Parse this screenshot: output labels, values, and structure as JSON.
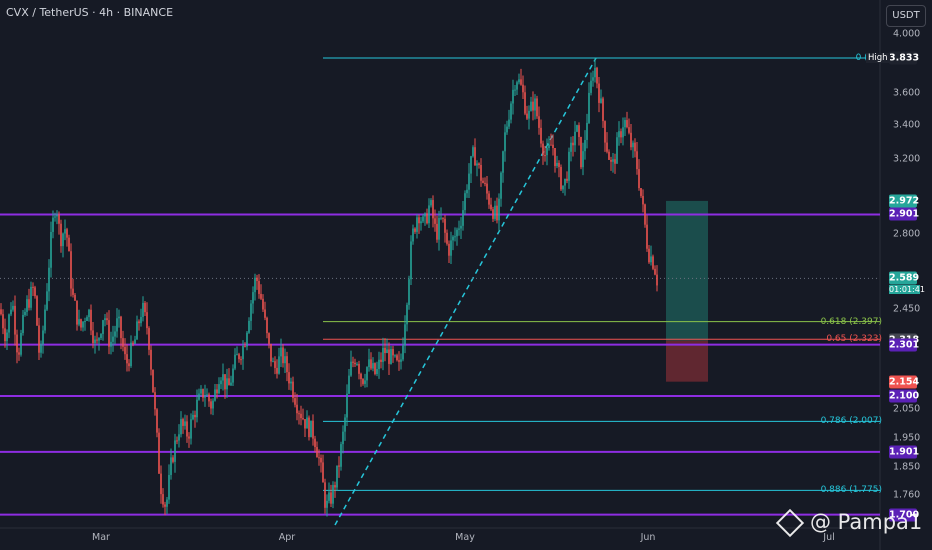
{
  "chart_title": "CVX / TetherUS · 4h · BINANCE",
  "currency_button": "USDT",
  "watermark": "@ Pampa1",
  "colors": {
    "background": "#161a25",
    "up": "#26a69a",
    "down": "#ef5350",
    "purple": "#8e2de2",
    "fib_cyan": "#26c6da",
    "fib_green": "#8bc34a",
    "fib_red": "#ef5350",
    "long_green": "#1e5f5a",
    "long_red": "#6d2a33"
  },
  "chart_data": {
    "type": "candlestick",
    "symbol": "CVX / TetherUS",
    "timeframe": "4h",
    "exchange": "BINANCE",
    "y_scale": "log",
    "ylim": [
      1.66,
      4.25
    ],
    "y_ticks": [
      "4.000",
      "3.600",
      "3.400",
      "3.200",
      "2.800",
      "2.450",
      "2.050",
      "1.950",
      "1.850",
      "1.760"
    ],
    "y_tick_values": [
      4.0,
      3.6,
      3.4,
      3.2,
      2.8,
      2.45,
      2.05,
      1.95,
      1.85,
      1.76
    ],
    "x_ticks": [
      "Mar",
      "Apr",
      "May",
      "Jun",
      "Jul"
    ],
    "price_path": [
      {
        "t": 0,
        "p": 2.45
      },
      {
        "t": 6,
        "p": 2.33
      },
      {
        "t": 12,
        "p": 2.5
      },
      {
        "t": 18,
        "p": 2.26
      },
      {
        "t": 26,
        "p": 2.46
      },
      {
        "t": 34,
        "p": 2.55
      },
      {
        "t": 40,
        "p": 2.22
      },
      {
        "t": 46,
        "p": 2.5
      },
      {
        "t": 52,
        "p": 2.82
      },
      {
        "t": 56,
        "p": 2.98
      },
      {
        "t": 60,
        "p": 2.78
      },
      {
        "t": 66,
        "p": 2.84
      },
      {
        "t": 72,
        "p": 2.52
      },
      {
        "t": 80,
        "p": 2.36
      },
      {
        "t": 88,
        "p": 2.46
      },
      {
        "t": 96,
        "p": 2.28
      },
      {
        "t": 104,
        "p": 2.44
      },
      {
        "t": 110,
        "p": 2.3
      },
      {
        "t": 118,
        "p": 2.4
      },
      {
        "t": 126,
        "p": 2.22
      },
      {
        "t": 134,
        "p": 2.3
      },
      {
        "t": 142,
        "p": 2.46
      },
      {
        "t": 148,
        "p": 2.36
      },
      {
        "t": 154,
        "p": 2.08
      },
      {
        "t": 160,
        "p": 1.8
      },
      {
        "t": 166,
        "p": 1.72
      },
      {
        "t": 172,
        "p": 1.88
      },
      {
        "t": 180,
        "p": 2.0
      },
      {
        "t": 188,
        "p": 1.96
      },
      {
        "t": 196,
        "p": 2.06
      },
      {
        "t": 204,
        "p": 2.12
      },
      {
        "t": 212,
        "p": 2.06
      },
      {
        "t": 220,
        "p": 2.2
      },
      {
        "t": 228,
        "p": 2.12
      },
      {
        "t": 236,
        "p": 2.24
      },
      {
        "t": 244,
        "p": 2.3
      },
      {
        "t": 250,
        "p": 2.46
      },
      {
        "t": 256,
        "p": 2.6
      },
      {
        "t": 262,
        "p": 2.48
      },
      {
        "t": 268,
        "p": 2.3
      },
      {
        "t": 274,
        "p": 2.2
      },
      {
        "t": 282,
        "p": 2.26
      },
      {
        "t": 290,
        "p": 2.16
      },
      {
        "t": 298,
        "p": 2.06
      },
      {
        "t": 306,
        "p": 2.0
      },
      {
        "t": 314,
        "p": 1.96
      },
      {
        "t": 320,
        "p": 1.86
      },
      {
        "t": 326,
        "p": 1.72
      },
      {
        "t": 332,
        "p": 1.76
      },
      {
        "t": 338,
        "p": 1.84
      },
      {
        "t": 344,
        "p": 1.98
      },
      {
        "t": 350,
        "p": 2.2
      },
      {
        "t": 356,
        "p": 2.26
      },
      {
        "t": 362,
        "p": 2.16
      },
      {
        "t": 368,
        "p": 2.22
      },
      {
        "t": 376,
        "p": 2.18
      },
      {
        "t": 384,
        "p": 2.28
      },
      {
        "t": 392,
        "p": 2.24
      },
      {
        "t": 400,
        "p": 2.2
      },
      {
        "t": 406,
        "p": 2.46
      },
      {
        "t": 412,
        "p": 2.78
      },
      {
        "t": 418,
        "p": 2.92
      },
      {
        "t": 424,
        "p": 2.84
      },
      {
        "t": 430,
        "p": 2.96
      },
      {
        "t": 436,
        "p": 2.8
      },
      {
        "t": 442,
        "p": 2.88
      },
      {
        "t": 448,
        "p": 2.72
      },
      {
        "t": 456,
        "p": 2.8
      },
      {
        "t": 462,
        "p": 2.9
      },
      {
        "t": 468,
        "p": 3.1
      },
      {
        "t": 474,
        "p": 3.24
      },
      {
        "t": 480,
        "p": 3.12
      },
      {
        "t": 486,
        "p": 3.02
      },
      {
        "t": 492,
        "p": 2.94
      },
      {
        "t": 498,
        "p": 2.86
      },
      {
        "t": 504,
        "p": 3.3
      },
      {
        "t": 510,
        "p": 3.52
      },
      {
        "t": 516,
        "p": 3.72
      },
      {
        "t": 522,
        "p": 3.62
      },
      {
        "t": 528,
        "p": 3.44
      },
      {
        "t": 534,
        "p": 3.56
      },
      {
        "t": 540,
        "p": 3.36
      },
      {
        "t": 546,
        "p": 3.2
      },
      {
        "t": 552,
        "p": 3.3
      },
      {
        "t": 558,
        "p": 3.12
      },
      {
        "t": 564,
        "p": 3.04
      },
      {
        "t": 570,
        "p": 3.22
      },
      {
        "t": 576,
        "p": 3.4
      },
      {
        "t": 582,
        "p": 3.16
      },
      {
        "t": 588,
        "p": 3.5
      },
      {
        "t": 594,
        "p": 3.8
      },
      {
        "t": 600,
        "p": 3.56
      },
      {
        "t": 606,
        "p": 3.3
      },
      {
        "t": 612,
        "p": 3.14
      },
      {
        "t": 618,
        "p": 3.3
      },
      {
        "t": 624,
        "p": 3.44
      },
      {
        "t": 630,
        "p": 3.3
      },
      {
        "t": 636,
        "p": 3.2
      },
      {
        "t": 642,
        "p": 2.96
      },
      {
        "t": 648,
        "p": 2.72
      },
      {
        "t": 654,
        "p": 2.66
      },
      {
        "t": 658,
        "p": 2.56
      }
    ],
    "horizontal_levels": [
      {
        "name": "resistance",
        "value": 2.901,
        "color": "#8e2de2"
      },
      {
        "name": "support-1",
        "value": 2.301,
        "color": "#8e2de2"
      },
      {
        "name": "support-2",
        "value": 2.1,
        "color": "#8e2de2"
      },
      {
        "name": "support-3",
        "value": 1.901,
        "color": "#8e2de2"
      },
      {
        "name": "support-4",
        "value": 1.7,
        "color": "#8e2de2"
      }
    ],
    "fib_levels": [
      {
        "label": "0 (3.8",
        "value": 3.833,
        "color": "#26c6da"
      },
      {
        "label": "0.618 (2.397)",
        "value": 2.397,
        "color": "#8bc34a"
      },
      {
        "label": "0.65 (2.323)",
        "value": 2.323,
        "color": "#ef5350"
      },
      {
        "label": "0.786 (2.007)",
        "value": 2.007,
        "color": "#26c6da"
      },
      {
        "label": "0.886 (1.775)",
        "value": 1.775,
        "color": "#26c6da"
      }
    ],
    "position": {
      "target": 2.972,
      "entry": 2.318,
      "stop": 2.154
    },
    "price_tags": [
      {
        "label": "3.833",
        "value": 3.833,
        "color": "#1e222d"
      },
      {
        "label": "2.972",
        "value": 2.972,
        "color": "#26a69a"
      },
      {
        "label": "2.901",
        "value": 2.901,
        "color": "#5b21b6"
      },
      {
        "label": "2.589",
        "value": 2.589,
        "color": "#26a69a"
      },
      {
        "label": "2.318",
        "value": 2.318,
        "color": "#434651"
      },
      {
        "label": "2.301",
        "value": 2.301,
        "color": "#5b21b6"
      },
      {
        "label": "2.154",
        "value": 2.154,
        "color": "#ef5350"
      },
      {
        "label": "2.100",
        "value": 2.1,
        "color": "#5b21b6"
      },
      {
        "label": "1.901",
        "value": 1.901,
        "color": "#5b21b6"
      },
      {
        "label": "1.700",
        "value": 1.7,
        "color": "#5b21b6"
      }
    ],
    "high_label": "High",
    "last_price": 2.589,
    "countdown": "01:01:41"
  }
}
